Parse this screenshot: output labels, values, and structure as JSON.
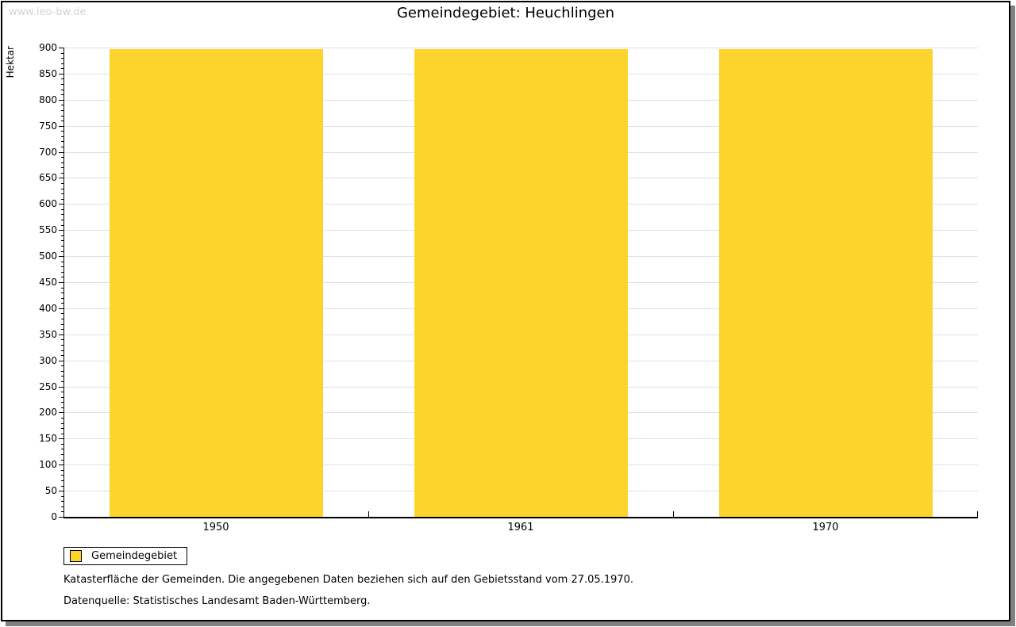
{
  "window": {
    "watermark": "www.leo-bw.de",
    "title": "Gemeindegebiet: Heuchlingen"
  },
  "legend": {
    "label": "Gemeindegebiet"
  },
  "footer": {
    "line1": "Katasterfläche der Gemeinden. Die angegebenen Daten beziehen sich auf den Gebietsstand vom 27.05.1970.",
    "line2": "Datenquelle: Statistisches Landesamt Baden-Württemberg."
  },
  "colors": {
    "bar": "#FDD42C",
    "grid": "#E0E0E0",
    "axis": "#000000",
    "watermark": "#D4D4D4",
    "shadow": "#808080"
  },
  "chart_data": {
    "type": "bar",
    "title": "Gemeindegebiet: Heuchlingen",
    "categories": [
      "1950",
      "1961",
      "1970"
    ],
    "series": [
      {
        "name": "Gemeindegebiet",
        "values": [
          897,
          897,
          897
        ]
      }
    ],
    "xlabel": "",
    "ylabel": "Hektar",
    "ylim": [
      0,
      900
    ],
    "ytick_step": 50,
    "minor_tick_step": 10,
    "grid": true,
    "legend_position": "bottom-left"
  }
}
